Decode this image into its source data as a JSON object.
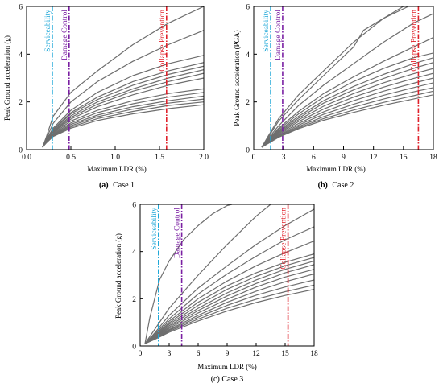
{
  "chart_data": [
    {
      "id": "case1",
      "type": "line",
      "caption_letter": "(a)",
      "caption_text": "Case 1",
      "xlabel": "Maximum LDR (%)",
      "ylabel": "Peak Ground acceleration (g)",
      "xlim": [
        0,
        2.0
      ],
      "ylim": [
        0,
        6
      ],
      "xticks": [
        "0.0",
        "0.5",
        "1.0",
        "1.5",
        "2.0"
      ],
      "yticks": [
        "0",
        "2",
        "4",
        "6"
      ],
      "grid": false,
      "curve_color": "#6e6e6e",
      "limit_lines": [
        {
          "label": "Serviceability",
          "x": 0.29,
          "color": "#1fa8d8"
        },
        {
          "label": "Damage Control",
          "x": 0.48,
          "color": "#7a1fa2"
        },
        {
          "label": "Collapse Prevention",
          "x": 1.58,
          "color": "#e0202a"
        }
      ],
      "series": [
        {
          "x": [
            0.18,
            0.22,
            0.3,
            0.5,
            0.8,
            1.2,
            1.6,
            2.0
          ],
          "y": [
            0.1,
            0.5,
            1.4,
            2.4,
            3.3,
            4.4,
            5.3,
            6.0
          ]
        },
        {
          "x": [
            0.18,
            0.22,
            0.3,
            0.5,
            0.8,
            1.2,
            1.6,
            2.0
          ],
          "y": [
            0.1,
            0.45,
            1.1,
            2.0,
            2.85,
            3.7,
            4.4,
            5.0
          ]
        },
        {
          "x": [
            0.18,
            0.22,
            0.3,
            0.5,
            0.8,
            1.2,
            1.6,
            2.0
          ],
          "y": [
            0.1,
            0.4,
            0.9,
            1.65,
            2.4,
            3.1,
            3.6,
            3.95
          ]
        },
        {
          "x": [
            0.18,
            0.22,
            0.3,
            0.5,
            0.8,
            1.2,
            1.6,
            2.0
          ],
          "y": [
            0.1,
            0.38,
            0.85,
            1.55,
            2.2,
            2.85,
            3.3,
            3.65
          ]
        },
        {
          "x": [
            0.18,
            0.22,
            0.3,
            0.5,
            0.8,
            1.2,
            1.6,
            2.0
          ],
          "y": [
            0.1,
            0.36,
            0.82,
            1.5,
            2.1,
            2.7,
            3.15,
            3.5
          ]
        },
        {
          "x": [
            0.18,
            0.22,
            0.3,
            0.5,
            0.8,
            1.2,
            1.6,
            2.0
          ],
          "y": [
            0.1,
            0.35,
            0.78,
            1.42,
            2.0,
            2.55,
            3.0,
            3.35
          ]
        },
        {
          "x": [
            0.18,
            0.22,
            0.3,
            0.5,
            0.8,
            1.2,
            1.6,
            2.0
          ],
          "y": [
            0.1,
            0.34,
            0.75,
            1.35,
            1.9,
            2.45,
            2.85,
            3.2
          ]
        },
        {
          "x": [
            0.18,
            0.22,
            0.3,
            0.5,
            0.8,
            1.2,
            1.6,
            2.0
          ],
          "y": [
            0.1,
            0.33,
            0.72,
            1.28,
            1.8,
            2.3,
            2.7,
            3.0
          ]
        },
        {
          "x": [
            0.18,
            0.22,
            0.3,
            0.5,
            0.8,
            1.2,
            1.6,
            2.0
          ],
          "y": [
            0.1,
            0.32,
            0.68,
            1.2,
            1.65,
            2.05,
            2.35,
            2.55
          ]
        },
        {
          "x": [
            0.18,
            0.22,
            0.3,
            0.5,
            0.8,
            1.2,
            1.6,
            2.0
          ],
          "y": [
            0.1,
            0.31,
            0.65,
            1.12,
            1.55,
            1.92,
            2.2,
            2.4
          ]
        },
        {
          "x": [
            0.18,
            0.22,
            0.3,
            0.5,
            0.8,
            1.2,
            1.6,
            2.0
          ],
          "y": [
            0.1,
            0.3,
            0.62,
            1.06,
            1.45,
            1.8,
            2.05,
            2.25
          ]
        },
        {
          "x": [
            0.18,
            0.22,
            0.3,
            0.5,
            0.8,
            1.2,
            1.6,
            2.0
          ],
          "y": [
            0.1,
            0.29,
            0.6,
            1.0,
            1.38,
            1.7,
            1.95,
            2.12
          ]
        },
        {
          "x": [
            0.18,
            0.22,
            0.3,
            0.5,
            0.8,
            1.2,
            1.6,
            2.0
          ],
          "y": [
            0.1,
            0.28,
            0.57,
            0.95,
            1.3,
            1.6,
            1.85,
            2.0
          ]
        },
        {
          "x": [
            0.18,
            0.22,
            0.3,
            0.5,
            0.8,
            1.2,
            1.6,
            2.0
          ],
          "y": [
            0.1,
            0.27,
            0.55,
            0.9,
            1.22,
            1.5,
            1.72,
            1.88
          ]
        }
      ]
    },
    {
      "id": "case2",
      "type": "line",
      "caption_letter": "(b)",
      "caption_text": "Case 2",
      "xlabel": "Maximum LDR (%)",
      "ylabel": "Peak Ground acceleration (PGA)",
      "xlim": [
        0,
        18
      ],
      "ylim": [
        0,
        6
      ],
      "xticks": [
        "0",
        "3",
        "6",
        "9",
        "12",
        "15",
        "18"
      ],
      "yticks": [
        "0",
        "2",
        "4",
        "6"
      ],
      "grid": false,
      "curve_color": "#6e6e6e",
      "limit_lines": [
        {
          "label": "Serviceability",
          "x": 1.7,
          "color": "#1fa8d8"
        },
        {
          "label": "Damage Control",
          "x": 2.9,
          "color": "#7a1fa2"
        },
        {
          "label": "Collapse Prevention",
          "x": 16.5,
          "color": "#e0202a"
        }
      ],
      "series": [
        {
          "x": [
            0.8,
            1.5,
            2.5,
            4.5,
            7,
            10,
            13,
            15.5
          ],
          "y": [
            0.1,
            0.6,
            1.3,
            2.3,
            3.3,
            4.5,
            5.5,
            6.0
          ]
        },
        {
          "x": [
            0.8,
            1.5,
            2.5,
            4.5,
            7,
            10,
            11,
            13,
            15
          ],
          "y": [
            0.1,
            0.55,
            1.2,
            2.1,
            3.1,
            4.3,
            5.0,
            5.5,
            6.0
          ]
        },
        {
          "x": [
            0.8,
            1.5,
            2.5,
            4.5,
            7,
            10,
            13,
            16,
            18
          ],
          "y": [
            0.1,
            0.5,
            1.0,
            1.85,
            2.7,
            3.6,
            4.5,
            5.3,
            5.7
          ]
        },
        {
          "x": [
            0.8,
            1.5,
            2.5,
            4.5,
            7,
            10,
            13,
            16,
            18
          ],
          "y": [
            0.1,
            0.45,
            0.9,
            1.6,
            2.35,
            3.05,
            3.7,
            4.3,
            4.7
          ]
        },
        {
          "x": [
            0.8,
            1.5,
            2.5,
            4.5,
            7,
            10,
            13,
            16,
            18
          ],
          "y": [
            0.1,
            0.42,
            0.85,
            1.5,
            2.2,
            2.85,
            3.4,
            3.85,
            4.05
          ]
        },
        {
          "x": [
            0.8,
            1.5,
            2.5,
            4.5,
            7,
            10,
            13,
            16,
            18
          ],
          "y": [
            0.1,
            0.4,
            0.8,
            1.4,
            2.05,
            2.65,
            3.15,
            3.6,
            3.85
          ]
        },
        {
          "x": [
            0.8,
            1.5,
            2.5,
            4.5,
            7,
            10,
            13,
            16,
            18
          ],
          "y": [
            0.1,
            0.38,
            0.76,
            1.32,
            1.95,
            2.5,
            2.98,
            3.4,
            3.65
          ]
        },
        {
          "x": [
            0.8,
            1.5,
            2.5,
            4.5,
            7,
            10,
            13,
            16,
            18
          ],
          "y": [
            0.1,
            0.36,
            0.72,
            1.25,
            1.82,
            2.35,
            2.8,
            3.18,
            3.4
          ]
        },
        {
          "x": [
            0.8,
            1.5,
            2.5,
            4.5,
            7,
            10,
            13,
            16,
            18
          ],
          "y": [
            0.1,
            0.34,
            0.68,
            1.18,
            1.7,
            2.2,
            2.62,
            2.98,
            3.2
          ]
        },
        {
          "x": [
            0.8,
            1.5,
            2.5,
            4.5,
            7,
            10,
            13,
            16,
            18
          ],
          "y": [
            0.1,
            0.32,
            0.64,
            1.1,
            1.58,
            2.05,
            2.45,
            2.78,
            3.0
          ]
        },
        {
          "x": [
            0.8,
            1.5,
            2.5,
            4.5,
            7,
            10,
            13,
            16,
            18
          ],
          "y": [
            0.1,
            0.3,
            0.6,
            1.03,
            1.48,
            1.9,
            2.28,
            2.6,
            2.8
          ]
        },
        {
          "x": [
            0.8,
            1.5,
            2.5,
            4.5,
            7,
            10,
            13,
            16,
            18
          ],
          "y": [
            0.1,
            0.29,
            0.57,
            0.97,
            1.38,
            1.78,
            2.12,
            2.42,
            2.6
          ]
        },
        {
          "x": [
            0.8,
            1.5,
            2.5,
            4.5,
            7,
            10,
            13,
            16,
            18
          ],
          "y": [
            0.1,
            0.28,
            0.54,
            0.92,
            1.3,
            1.66,
            1.98,
            2.26,
            2.45
          ]
        },
        {
          "x": [
            0.8,
            1.5,
            2.5,
            4.5,
            7,
            10,
            13,
            16,
            18
          ],
          "y": [
            0.1,
            0.27,
            0.52,
            0.88,
            1.23,
            1.56,
            1.86,
            2.12,
            2.3
          ]
        }
      ]
    },
    {
      "id": "case3",
      "type": "line",
      "caption_letter": "",
      "caption_text": "(c) Case 3",
      "xlabel": "Maximum LDR (%)",
      "ylabel": "Peak Ground acceleration (g)",
      "xlim": [
        0,
        18
      ],
      "ylim": [
        0,
        6
      ],
      "xticks": [
        "0",
        "3",
        "6",
        "9",
        "12",
        "15",
        "18"
      ],
      "yticks": [
        "0",
        "2",
        "4",
        "6"
      ],
      "grid": false,
      "curve_color": "#6e6e6e",
      "limit_lines": [
        {
          "label": "Serviceability",
          "x": 1.9,
          "color": "#1fa8d8"
        },
        {
          "label": "Damage Control",
          "x": 4.3,
          "color": "#7a1fa2"
        },
        {
          "label": "Collapse Prevention",
          "x": 15.3,
          "color": "#e0202a"
        }
      ],
      "series": [
        {
          "x": [
            0.5,
            1.0,
            2.0,
            3.0,
            4.5,
            6.0,
            7.5,
            9.0,
            9.5
          ],
          "y": [
            0.1,
            1.2,
            2.8,
            3.6,
            4.5,
            5.1,
            5.6,
            5.95,
            6.0
          ]
        },
        {
          "x": [
            0.5,
            1.5,
            3,
            6,
            9,
            12,
            13.5
          ],
          "y": [
            0.1,
            0.7,
            1.6,
            3.0,
            4.3,
            5.5,
            6.0
          ]
        },
        {
          "x": [
            0.5,
            1.5,
            3,
            6,
            9,
            12,
            15,
            18
          ],
          "y": [
            0.1,
            0.55,
            1.3,
            2.45,
            3.4,
            4.3,
            5.1,
            5.8
          ]
        },
        {
          "x": [
            0.5,
            1.5,
            3,
            6,
            9,
            12,
            15,
            18
          ],
          "y": [
            0.1,
            0.5,
            1.15,
            2.2,
            3.05,
            3.8,
            4.5,
            5.05
          ]
        },
        {
          "x": [
            0.5,
            1.5,
            3,
            6,
            9,
            12,
            15,
            18
          ],
          "y": [
            0.1,
            0.46,
            1.05,
            2.0,
            2.75,
            3.4,
            3.95,
            4.45
          ]
        },
        {
          "x": [
            0.5,
            1.5,
            3,
            6,
            9,
            12,
            15,
            18
          ],
          "y": [
            0.1,
            0.43,
            0.98,
            1.85,
            2.55,
            3.1,
            3.55,
            3.9
          ]
        },
        {
          "x": [
            0.5,
            1.5,
            3,
            6,
            9,
            12,
            15,
            18
          ],
          "y": [
            0.1,
            0.4,
            0.92,
            1.72,
            2.4,
            2.95,
            3.4,
            3.75
          ]
        },
        {
          "x": [
            0.5,
            1.5,
            3,
            6,
            9,
            12,
            15,
            18
          ],
          "y": [
            0.1,
            0.38,
            0.86,
            1.6,
            2.25,
            2.8,
            3.25,
            3.6
          ]
        },
        {
          "x": [
            0.5,
            1.5,
            3,
            6,
            9,
            12,
            15,
            18
          ],
          "y": [
            0.1,
            0.36,
            0.8,
            1.5,
            2.12,
            2.65,
            3.1,
            3.45
          ]
        },
        {
          "x": [
            0.5,
            1.5,
            3,
            6,
            9,
            12,
            15,
            18
          ],
          "y": [
            0.1,
            0.34,
            0.75,
            1.4,
            1.98,
            2.5,
            2.92,
            3.25
          ]
        },
        {
          "x": [
            0.5,
            1.5,
            3,
            6,
            9,
            12,
            15,
            18
          ],
          "y": [
            0.1,
            0.32,
            0.7,
            1.3,
            1.85,
            2.32,
            2.72,
            3.05
          ]
        },
        {
          "x": [
            0.5,
            1.5,
            3,
            6,
            9,
            12,
            15,
            18
          ],
          "y": [
            0.1,
            0.3,
            0.66,
            1.22,
            1.72,
            2.15,
            2.5,
            2.8
          ]
        },
        {
          "x": [
            0.5,
            1.5,
            3,
            6,
            9,
            12,
            15,
            18
          ],
          "y": [
            0.1,
            0.29,
            0.62,
            1.14,
            1.6,
            1.98,
            2.3,
            2.58
          ]
        },
        {
          "x": [
            0.5,
            1.5,
            3,
            6,
            9,
            12,
            15,
            18
          ],
          "y": [
            0.1,
            0.28,
            0.58,
            1.06,
            1.48,
            1.84,
            2.14,
            2.4
          ]
        }
      ]
    }
  ]
}
